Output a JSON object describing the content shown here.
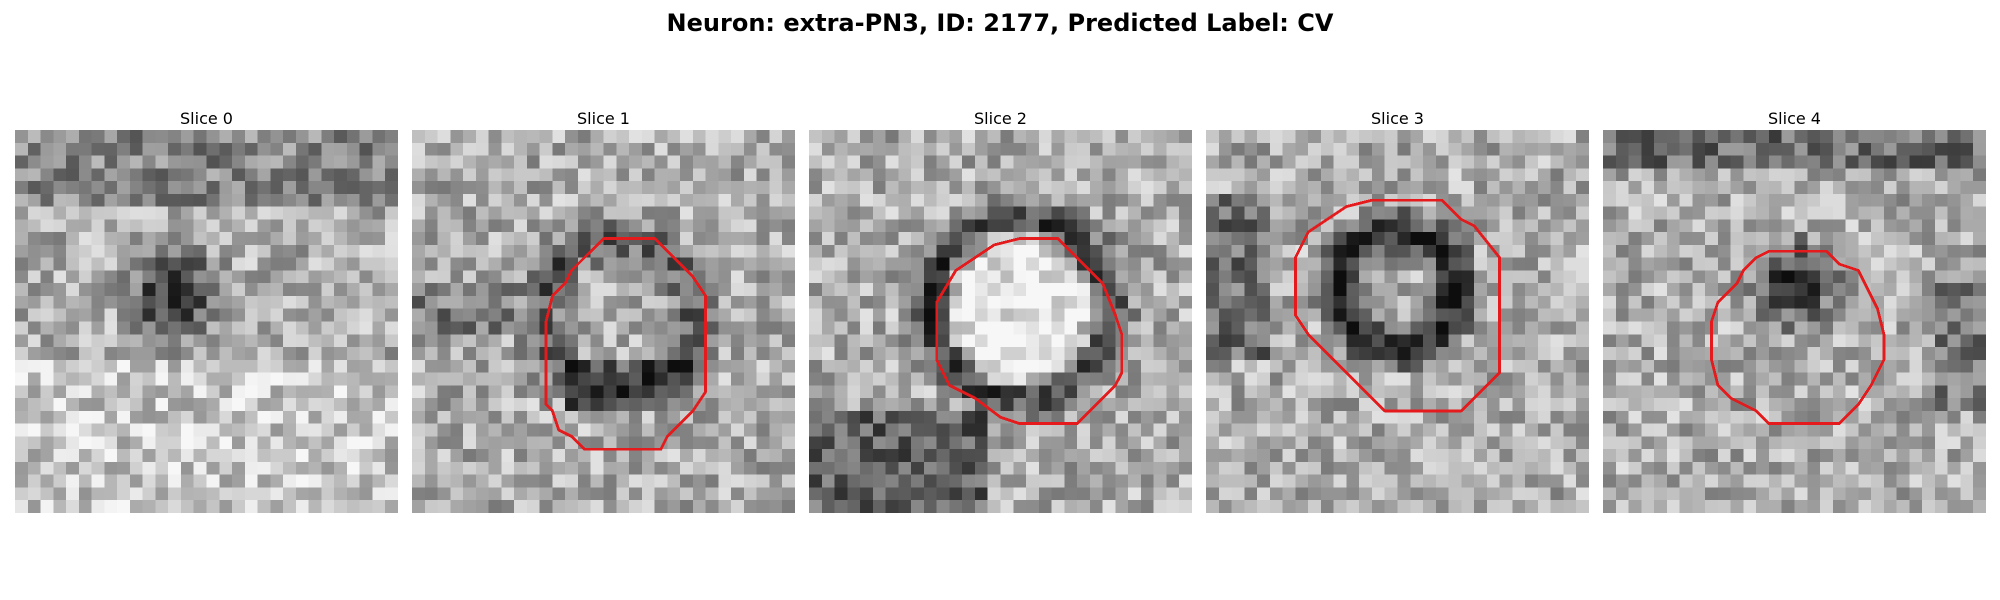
{
  "figure": {
    "title": "Neuron: extra-PN3, ID: 2177, Predicted Label: CV"
  },
  "panels": [
    {
      "title": "Slice 0",
      "has_outline": false,
      "dark_blob": "center-left"
    },
    {
      "title": "Slice 1",
      "has_outline": true,
      "dark_blob": "ring"
    },
    {
      "title": "Slice 2",
      "has_outline": true,
      "dark_blob": "bright-center"
    },
    {
      "title": "Slice 3",
      "has_outline": true,
      "dark_blob": "dark-ring"
    },
    {
      "title": "Slice 4",
      "has_outline": true,
      "dark_blob": "top-dark"
    }
  ],
  "colors": {
    "outline": "#e41a1c",
    "background": "#ffffff"
  }
}
